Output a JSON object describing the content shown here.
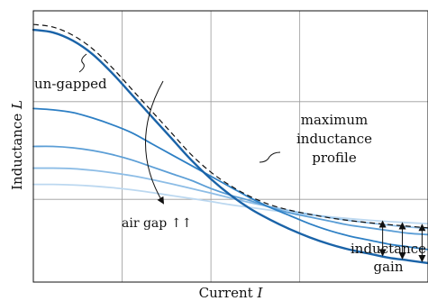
{
  "chart_data": {
    "type": "line",
    "xlabel": "Current",
    "xlabel_var": "I",
    "ylabel": "Inductance",
    "ylabel_var": "L",
    "xlim": [
      0,
      1
    ],
    "ylim": [
      0,
      1
    ],
    "grid": true,
    "x_ticks": [
      0.225,
      0.45,
      0.675
    ],
    "y_ticks": [
      0.305,
      0.665
    ],
    "x": [
      0,
      0.05,
      0.1,
      0.15,
      0.2,
      0.25,
      0.3,
      0.35,
      0.4,
      0.45,
      0.5,
      0.55,
      0.6,
      0.65,
      0.7,
      0.75,
      0.8,
      0.85,
      0.9,
      0.95,
      1.0
    ],
    "series": [
      {
        "values": [
          0.93,
          0.92,
          0.89,
          0.84,
          0.77,
          0.69,
          0.61,
          0.53,
          0.45,
          0.38,
          0.32,
          0.27,
          0.23,
          0.195,
          0.165,
          0.14,
          0.12,
          0.105,
          0.09,
          0.08,
          0.07
        ],
        "color": "#1a63a8",
        "width": 2.4
      },
      {
        "values": [
          0.64,
          0.635,
          0.625,
          0.605,
          0.58,
          0.55,
          0.51,
          0.47,
          0.43,
          0.39,
          0.35,
          0.31,
          0.275,
          0.245,
          0.215,
          0.19,
          0.17,
          0.155,
          0.14,
          0.13,
          0.12
        ],
        "color": "#2d7fc4",
        "width": 1.8
      },
      {
        "values": [
          0.5,
          0.5,
          0.495,
          0.485,
          0.47,
          0.45,
          0.425,
          0.4,
          0.375,
          0.345,
          0.32,
          0.3,
          0.275,
          0.255,
          0.24,
          0.225,
          0.21,
          0.2,
          0.19,
          0.18,
          0.175
        ],
        "color": "#5b9ed6",
        "width": 1.8
      },
      {
        "values": [
          0.42,
          0.42,
          0.418,
          0.412,
          0.403,
          0.392,
          0.378,
          0.362,
          0.345,
          0.328,
          0.31,
          0.293,
          0.278,
          0.263,
          0.25,
          0.238,
          0.227,
          0.218,
          0.21,
          0.203,
          0.198
        ],
        "color": "#8dbde6",
        "width": 1.8
      },
      {
        "values": [
          0.36,
          0.36,
          0.358,
          0.354,
          0.348,
          0.34,
          0.33,
          0.319,
          0.308,
          0.297,
          0.285,
          0.275,
          0.265,
          0.256,
          0.248,
          0.241,
          0.234,
          0.228,
          0.223,
          0.219,
          0.215
        ],
        "color": "#bcd8f0",
        "width": 1.8
      }
    ],
    "envelope": {
      "values": [
        0.95,
        0.94,
        0.91,
        0.86,
        0.79,
        0.71,
        0.63,
        0.55,
        0.47,
        0.405,
        0.355,
        0.315,
        0.285,
        0.265,
        0.25,
        0.237,
        0.227,
        0.219,
        0.212,
        0.206,
        0.2
      ],
      "style": "dashed"
    },
    "gain_markers_x": [
      0.885,
      0.935,
      0.985
    ],
    "annotations": {
      "ungapped": "un-gapped",
      "airgap": "air gap ↑↑",
      "profile_line1": "maximum",
      "profile_line2": "inductance",
      "profile_line3": "profile",
      "gain_line1": "inductance",
      "gain_line2": "gain"
    }
  }
}
